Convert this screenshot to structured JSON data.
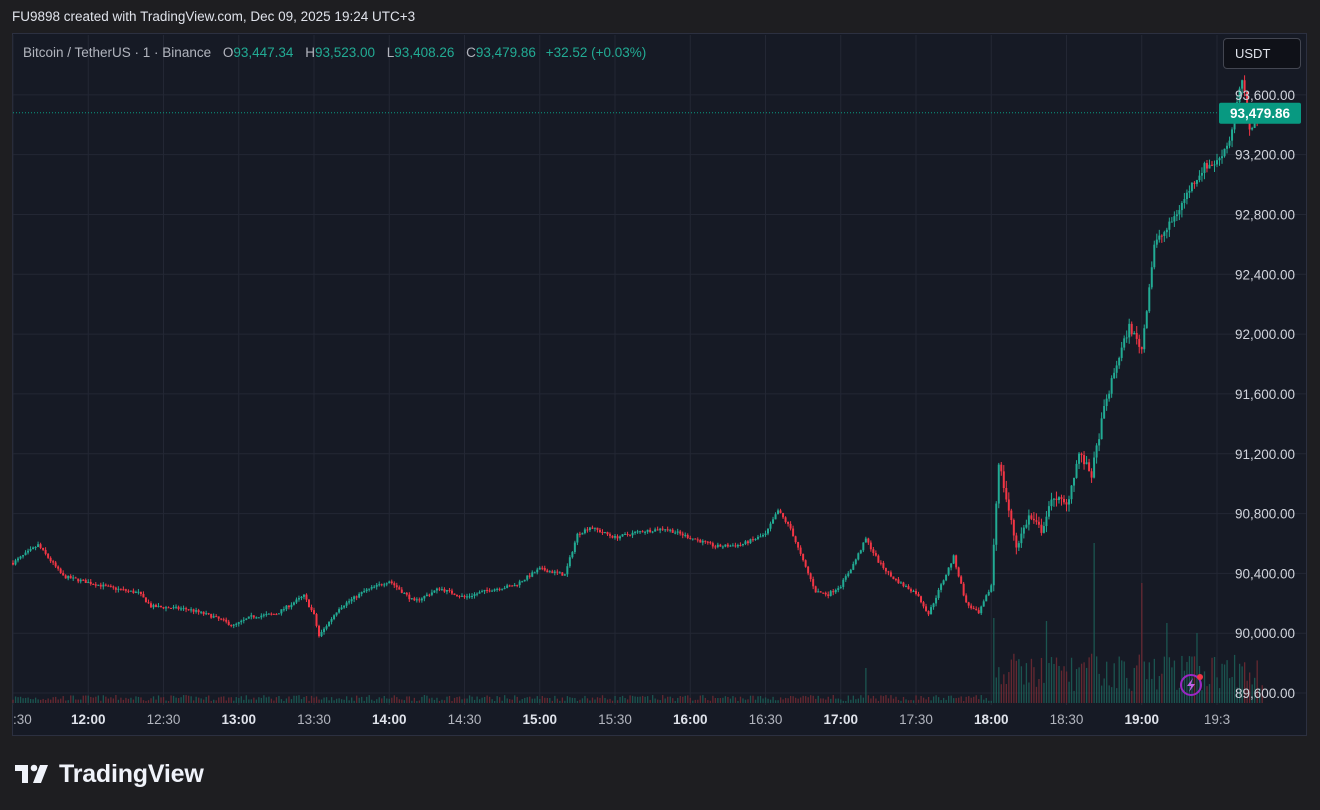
{
  "header": {
    "attribution": "FU9898 created with TradingView.com, Dec 09, 2025 19:24 UTC+3"
  },
  "legend": {
    "symbol": "Bitcoin / TetherUS · 1 · Binance",
    "open_label": "O",
    "open": "93,447.34",
    "high_label": "H",
    "high": "93,523.00",
    "low_label": "L",
    "low": "93,408.26",
    "close_label": "C",
    "close": "93,479.86",
    "change": "+32.52 (+0.03%)"
  },
  "unit_button": "USDT",
  "brand": {
    "name": "TradingView",
    "icon": "tradingview-logo-icon"
  },
  "colors": {
    "up": "#22ab94",
    "down": "#f23645",
    "background": "#161a25",
    "grid": "#232734",
    "price_label_bg": "#089981"
  },
  "chart_data": {
    "type": "candlestick",
    "symbol": "Bitcoin / TetherUS",
    "interval": "1",
    "exchange": "Binance",
    "currency": "USDT",
    "y_ticks": [
      "93,600.00",
      "93,200.00",
      "92,800.00",
      "92,400.00",
      "92,000.00",
      "91,600.00",
      "91,200.00",
      "90,800.00",
      "90,400.00",
      "90,000.00",
      "89,600.00"
    ],
    "y_tick_values": [
      93600,
      93200,
      92800,
      92400,
      92000,
      91600,
      91200,
      90800,
      90400,
      90000,
      89600
    ],
    "ylim": [
      89520,
      94000
    ],
    "x_ticks": [
      ":30",
      "12:00",
      "12:30",
      "13:00",
      "13:30",
      "14:00",
      "14:30",
      "15:00",
      "15:30",
      "16:00",
      "16:30",
      "17:00",
      "17:30",
      "18:00",
      "18:30",
      "19:00",
      "19:3"
    ],
    "x_tick_bold": [
      false,
      true,
      false,
      true,
      false,
      true,
      false,
      true,
      false,
      true,
      false,
      true,
      false,
      true,
      false,
      true,
      false
    ],
    "x_tick_minutes": [
      690,
      720,
      750,
      780,
      810,
      840,
      870,
      900,
      930,
      960,
      990,
      1020,
      1050,
      1080,
      1110,
      1140,
      1170
    ],
    "xlim_minutes": [
      690,
      1170
    ],
    "last_price": 93479.86,
    "last_price_label": "93,479.86",
    "price_path": [
      [
        690,
        90470
      ],
      [
        700,
        90590
      ],
      [
        710,
        90380
      ],
      [
        720,
        90340
      ],
      [
        730,
        90300
      ],
      [
        740,
        90270
      ],
      [
        745,
        90180
      ],
      [
        760,
        90160
      ],
      [
        770,
        90110
      ],
      [
        778,
        90050
      ],
      [
        785,
        90110
      ],
      [
        795,
        90130
      ],
      [
        806,
        90250
      ],
      [
        810,
        90120
      ],
      [
        812,
        89980
      ],
      [
        820,
        90170
      ],
      [
        830,
        90280
      ],
      [
        840,
        90350
      ],
      [
        850,
        90210
      ],
      [
        860,
        90300
      ],
      [
        870,
        90240
      ],
      [
        880,
        90290
      ],
      [
        890,
        90320
      ],
      [
        900,
        90430
      ],
      [
        910,
        90390
      ],
      [
        915,
        90660
      ],
      [
        920,
        90710
      ],
      [
        930,
        90640
      ],
      [
        940,
        90680
      ],
      [
        950,
        90700
      ],
      [
        960,
        90640
      ],
      [
        970,
        90580
      ],
      [
        980,
        90590
      ],
      [
        990,
        90660
      ],
      [
        995,
        90820
      ],
      [
        1000,
        90700
      ],
      [
        1005,
        90480
      ],
      [
        1010,
        90280
      ],
      [
        1015,
        90260
      ],
      [
        1020,
        90320
      ],
      [
        1025,
        90460
      ],
      [
        1030,
        90630
      ],
      [
        1035,
        90480
      ],
      [
        1040,
        90380
      ],
      [
        1045,
        90320
      ],
      [
        1050,
        90270
      ],
      [
        1055,
        90130
      ],
      [
        1060,
        90320
      ],
      [
        1065,
        90510
      ],
      [
        1070,
        90200
      ],
      [
        1075,
        90130
      ],
      [
        1080,
        90320
      ],
      [
        1083,
        91150
      ],
      [
        1086,
        90900
      ],
      [
        1090,
        90580
      ],
      [
        1095,
        90780
      ],
      [
        1100,
        90690
      ],
      [
        1105,
        90920
      ],
      [
        1110,
        90850
      ],
      [
        1115,
        91200
      ],
      [
        1120,
        91060
      ],
      [
        1125,
        91500
      ],
      [
        1130,
        91800
      ],
      [
        1135,
        92050
      ],
      [
        1140,
        91900
      ],
      [
        1145,
        92600
      ],
      [
        1150,
        92700
      ],
      [
        1155,
        92840
      ],
      [
        1160,
        93000
      ],
      [
        1165,
        93120
      ],
      [
        1170,
        93150
      ],
      [
        1175,
        93300
      ],
      [
        1180,
        93700
      ],
      [
        1183,
        93380
      ],
      [
        1188,
        93480
      ]
    ],
    "volume_spikes": [
      [
        1030,
        0.35
      ],
      [
        1081,
        0.85
      ],
      [
        1102,
        0.82
      ],
      [
        1121,
        1.6
      ],
      [
        1140,
        1.2
      ],
      [
        1150,
        0.8
      ],
      [
        1162,
        0.7
      ]
    ]
  }
}
